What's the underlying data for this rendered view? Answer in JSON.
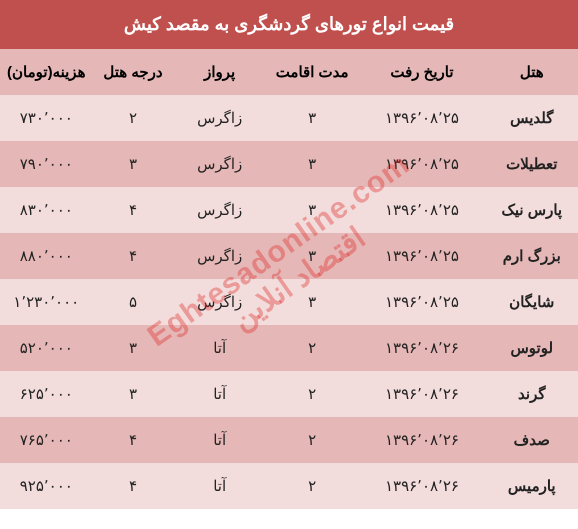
{
  "colors": {
    "title_bg": "#c0504d",
    "title_fg": "#ffffff",
    "header_fg": "#000000",
    "cell_fg": "#222222",
    "odd_bg": "#e5b8b7",
    "even_bg": "#f2dddc",
    "watermark": "rgba(220,30,30,0.35)"
  },
  "title": "قیمت انواع تورهای گردشگری به مقصد کیش",
  "columns": [
    "هتل",
    "تاریخ رفت",
    "مدت اقامت",
    "پرواز",
    "درجه هتل",
    "هزینه(تومان)"
  ],
  "col_widths_pct": [
    16,
    22,
    16,
    16,
    14,
    16
  ],
  "rows": [
    {
      "hotel": "گلدیس",
      "date": "۱۳۹۶٬۰۸٬۲۵",
      "nights": "۳",
      "flight": "زاگرس",
      "stars": "۲",
      "price": "۷۳۰٬۰۰۰"
    },
    {
      "hotel": "تعطیلات",
      "date": "۱۳۹۶٬۰۸٬۲۵",
      "nights": "۳",
      "flight": "زاگرس",
      "stars": "۳",
      "price": "۷۹۰٬۰۰۰"
    },
    {
      "hotel": "پارس نیک",
      "date": "۱۳۹۶٬۰۸٬۲۵",
      "nights": "۳",
      "flight": "زاگرس",
      "stars": "۴",
      "price": "۸۳۰٬۰۰۰"
    },
    {
      "hotel": "بزرگ ارم",
      "date": "۱۳۹۶٬۰۸٬۲۵",
      "nights": "۳",
      "flight": "زاگرس",
      "stars": "۴",
      "price": "۸۸۰٬۰۰۰"
    },
    {
      "hotel": "شایگان",
      "date": "۱۳۹۶٬۰۸٬۲۵",
      "nights": "۳",
      "flight": "زاگرس",
      "stars": "۵",
      "price": "۱٬۲۳۰٬۰۰۰"
    },
    {
      "hotel": "لوتوس",
      "date": "۱۳۹۶٬۰۸٬۲۶",
      "nights": "۲",
      "flight": "آتا",
      "stars": "۳",
      "price": "۵۲۰٬۰۰۰"
    },
    {
      "hotel": "گرند",
      "date": "۱۳۹۶٬۰۸٬۲۶",
      "nights": "۲",
      "flight": "آتا",
      "stars": "۳",
      "price": "۶۲۵٬۰۰۰"
    },
    {
      "hotel": "صدف",
      "date": "۱۳۹۶٬۰۸٬۲۶",
      "nights": "۲",
      "flight": "آتا",
      "stars": "۴",
      "price": "۷۶۵٬۰۰۰"
    },
    {
      "hotel": "پارمیس",
      "date": "۱۳۹۶٬۰۸٬۲۶",
      "nights": "۲",
      "flight": "آتا",
      "stars": "۴",
      "price": "۹۲۵٬۰۰۰"
    }
  ],
  "watermark": {
    "line1": "Eghtesadonline.com",
    "line2": "اقتصاد آنلاین"
  }
}
